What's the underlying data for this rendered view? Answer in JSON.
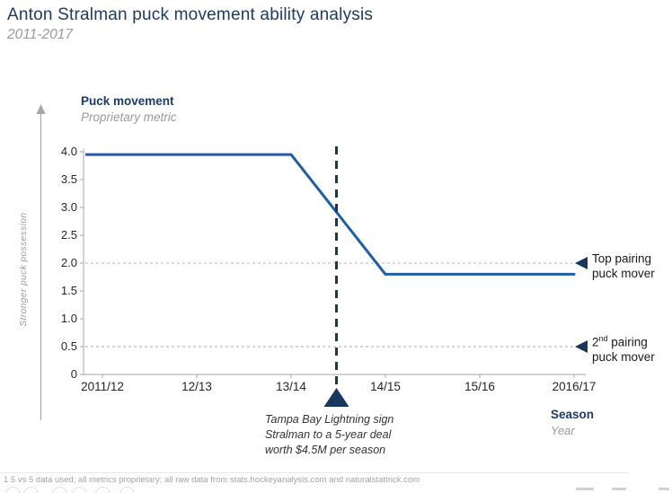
{
  "header": {
    "title": "Anton Stralman puck movement ability analysis",
    "subtitle": "2011-2017"
  },
  "metric_header": {
    "title": "Puck movement",
    "subtitle": "Proprietary metric"
  },
  "y_direction_label": "Stronger puck possession",
  "x_axis_header": {
    "title": "Season",
    "subtitle": "Year"
  },
  "thresholds": [
    {
      "value": 2.0,
      "text1": "Top pairing",
      "sup": "",
      "text2": "",
      "line2": "puck mover",
      "line_color": "#d6a3c2"
    },
    {
      "value": 0.5,
      "text1": "2",
      "sup": "nd",
      "text2": " pairing",
      "line2": "puck mover",
      "line_color": "#ababab"
    }
  ],
  "annotation": {
    "line1": "Tampa Bay Lightning sign",
    "line2": "Stralman to a 5-year deal",
    "line3": "worth $4.5M per season"
  },
  "footnote": "1 5 vs 5 data used; all metrics proprietary; all raw data from stats.hockeyanalysis.com and naturalstattrick.com",
  "colors": {
    "navy": "#1e3a66",
    "line_blue": "#1d5ea6",
    "marker_navy": "#17375e",
    "axis_gray": "#a6a6a6",
    "text_gray": "#9a9a9a",
    "pink": "#d6a3c2",
    "ref_gray": "#ababab"
  },
  "chart_data": {
    "type": "line",
    "title": "Anton Stralman puck movement ability analysis (2011-2017)",
    "categories": [
      "2011/12",
      "12/13",
      "13/14",
      "14/15",
      "15/16",
      "2016/17"
    ],
    "series": [
      {
        "name": "Puck movement (proprietary metric)",
        "values": [
          3.95,
          3.95,
          3.95,
          1.8,
          1.8,
          1.8
        ]
      }
    ],
    "ylim": [
      0,
      4.0
    ],
    "yticks": [
      0,
      0.5,
      1.0,
      1.5,
      2.0,
      2.5,
      3.0,
      3.5,
      4.0
    ],
    "xlabel": "Season (Year)",
    "ylabel": "Puck movement (Proprietary metric)",
    "grid": false,
    "legend": "none",
    "reference_lines": [
      {
        "y": 2.0,
        "label": "Top pairing puck mover",
        "style": "pink-dotted"
      },
      {
        "y": 0.5,
        "label": "2nd pairing puck mover",
        "style": "gray-dotted"
      }
    ],
    "event_marker": {
      "between": [
        "13/14",
        "14/15"
      ],
      "label": "Tampa Bay Lightning sign Stralman to a 5-year deal worth $4.5M per season"
    }
  }
}
